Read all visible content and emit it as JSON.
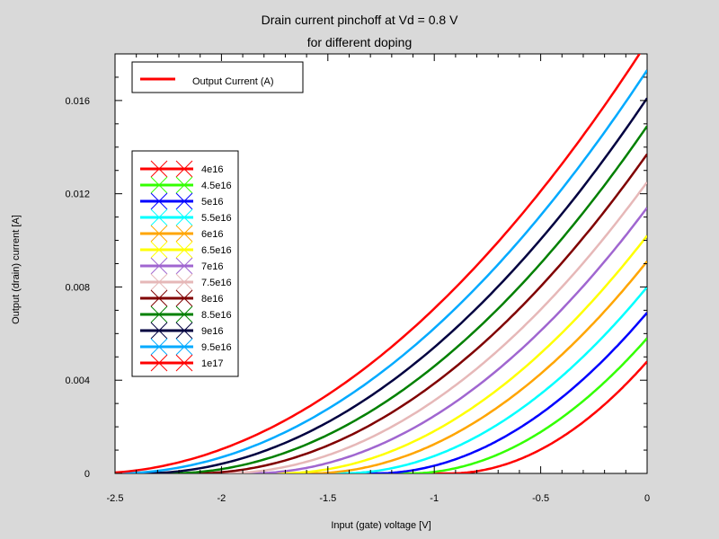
{
  "chart_data": {
    "type": "line",
    "title": "Drain current pinchoff at Vd = 0.8 V",
    "subtitle": "for different doping",
    "xlabel": "Input (gate) voltage [V]",
    "ylabel": "Output (drain) current [A]",
    "xlim": [
      -2.5,
      0
    ],
    "ylim": [
      0,
      0.018
    ],
    "xticks": [
      -2.5,
      -2,
      -1.5,
      -1,
      -0.5,
      0
    ],
    "xtick_labels": [
      "-2.5",
      "-2",
      "-1.5",
      "-1",
      "-0.5",
      "0"
    ],
    "yticks": [
      0,
      0.004,
      0.008,
      0.012,
      0.016
    ],
    "ytick_labels": [
      "0",
      "0.004",
      "0.008",
      "0.012",
      "0.016"
    ],
    "grid": false,
    "legend_top": {
      "label": "Output Current (A)",
      "color": "#ff0000",
      "placement": "top-left"
    },
    "legend_placement": "left",
    "series": [
      {
        "name": "4e16",
        "color": "#ff0000",
        "x0": -0.93,
        "y_at_0": 0.0048
      },
      {
        "name": "4.5e16",
        "color": "#33ff00",
        "x0": -1.12,
        "y_at_0": 0.0058
      },
      {
        "name": "5e16",
        "color": "#0000ff",
        "x0": -1.28,
        "y_at_0": 0.0069
      },
      {
        "name": "5.5e16",
        "color": "#00ffff",
        "x0": -1.44,
        "y_at_0": 0.008
      },
      {
        "name": "6e16",
        "color": "#ffa500",
        "x0": -1.59,
        "y_at_0": 0.0091
      },
      {
        "name": "6.5e16",
        "color": "#ffff00",
        "x0": -1.73,
        "y_at_0": 0.0102
      },
      {
        "name": "7e16",
        "color": "#a066d0",
        "x0": -1.87,
        "y_at_0": 0.0114
      },
      {
        "name": "7.5e16",
        "color": "#e6b8b8",
        "x0": -2.0,
        "y_at_0": 0.0125
      },
      {
        "name": "8e16",
        "color": "#800000",
        "x0": -2.13,
        "y_at_0": 0.0137
      },
      {
        "name": "8.5e16",
        "color": "#008000",
        "x0": -2.25,
        "y_at_0": 0.0149
      },
      {
        "name": "9e16",
        "color": "#000040",
        "x0": -2.38,
        "y_at_0": 0.0161
      },
      {
        "name": "9.5e16",
        "color": "#00aaff",
        "x0": -2.5,
        "y_at_0": 0.0173
      },
      {
        "name": "1e17",
        "color": "#ff0000",
        "x0": -2.62,
        "y_at_0": 0.0185
      }
    ]
  }
}
